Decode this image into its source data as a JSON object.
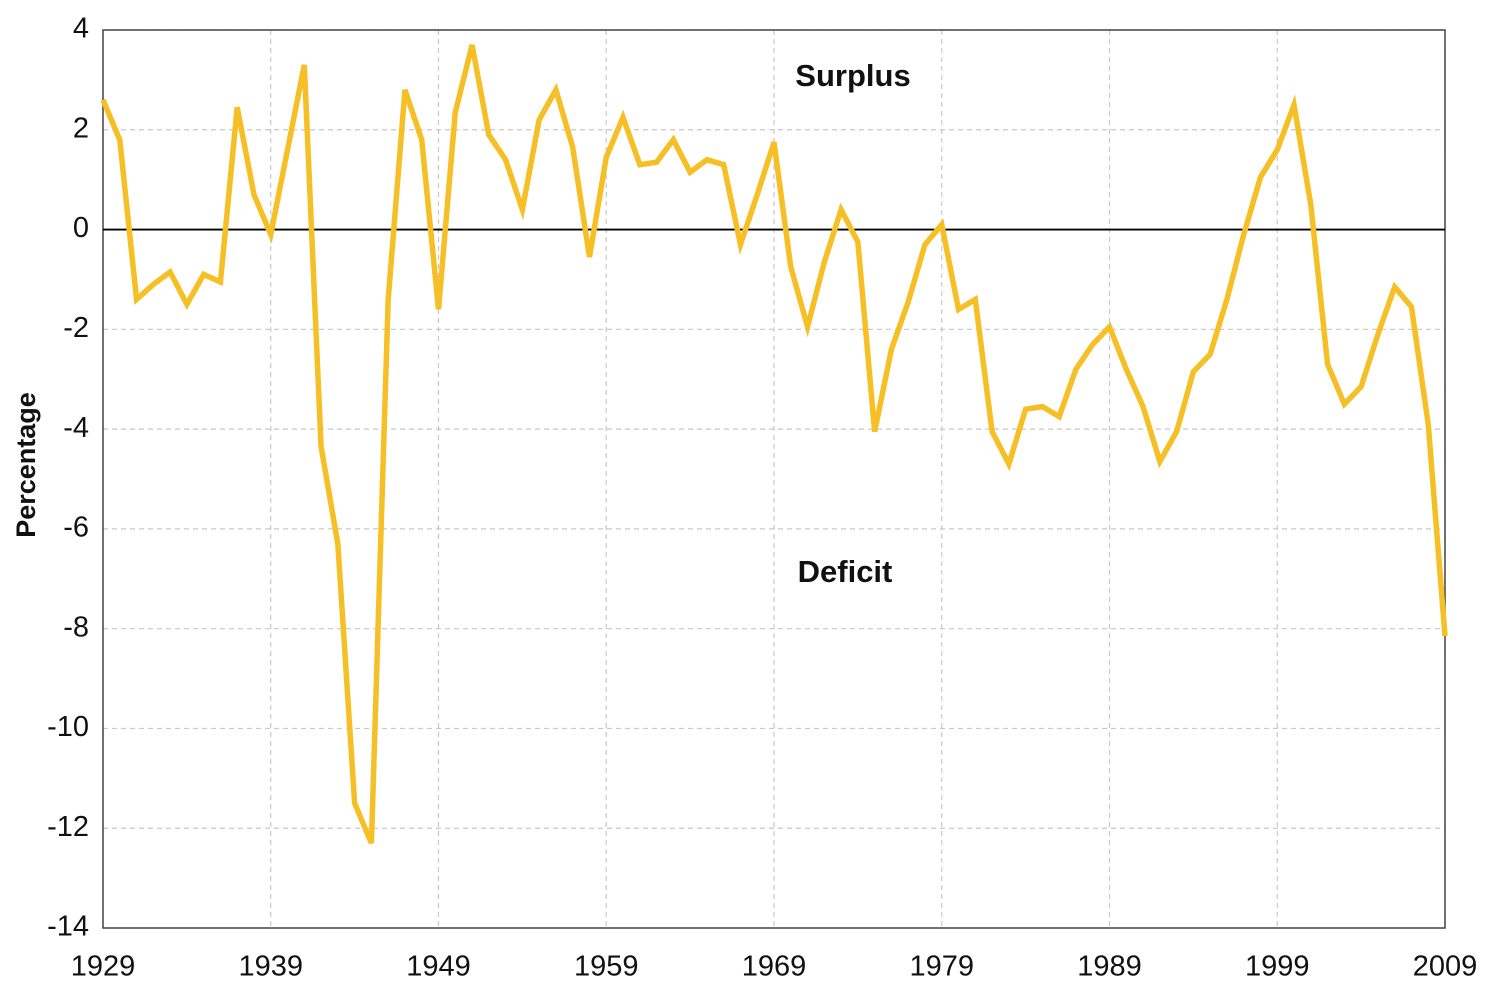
{
  "chart_data": {
    "type": "line",
    "y_label": "Percentage",
    "annotations": [
      "Surplus",
      "Deficit"
    ],
    "x": [
      1929,
      1930,
      1931,
      1932,
      1933,
      1934,
      1935,
      1936,
      1937,
      1938,
      1939,
      1940,
      1941,
      1942,
      1943,
      1944,
      1945,
      1946,
      1947,
      1948,
      1949,
      1950,
      1951,
      1952,
      1953,
      1954,
      1955,
      1956,
      1957,
      1958,
      1959,
      1960,
      1961,
      1962,
      1963,
      1964,
      1965,
      1966,
      1967,
      1968,
      1969,
      1970,
      1971,
      1972,
      1973,
      1974,
      1975,
      1976,
      1977,
      1978,
      1979,
      1980,
      1981,
      1982,
      1983,
      1984,
      1985,
      1986,
      1987,
      1988,
      1989,
      1990,
      1991,
      1992,
      1993,
      1994,
      1995,
      1996,
      1997,
      1998,
      1999,
      2000,
      2001,
      2002,
      2003,
      2004,
      2005,
      2006,
      2007,
      2008,
      2009
    ],
    "series": [
      {
        "color": "#f6bf26",
        "values": [
          2.6,
          1.8,
          -1.4,
          -1.1,
          -0.85,
          -1.5,
          -0.9,
          -1.05,
          2.45,
          0.7,
          -0.1,
          1.6,
          3.3,
          -4.35,
          -6.3,
          -11.5,
          -12.3,
          -1.4,
          2.8,
          1.8,
          -1.6,
          2.35,
          3.7,
          1.9,
          1.4,
          0.4,
          2.2,
          2.8,
          1.65,
          -0.55,
          1.45,
          2.25,
          1.3,
          1.35,
          1.8,
          1.15,
          1.4,
          1.3,
          -0.3,
          0.7,
          1.75,
          -0.75,
          -1.95,
          -0.65,
          0.4,
          -0.25,
          -4.05,
          -2.4,
          -1.45,
          -0.3,
          0.1,
          -1.6,
          -1.4,
          -4.05,
          -4.7,
          -3.6,
          -3.55,
          -3.75,
          -2.8,
          -2.3,
          -1.95,
          -2.8,
          -3.55,
          -4.65,
          -4.05,
          -2.85,
          -2.5,
          -1.4,
          -0.1,
          1.05,
          1.6,
          2.5,
          0.5,
          -2.7,
          -3.5,
          -3.15,
          -2.1,
          -1.15,
          -1.55,
          -3.9,
          -8.15
        ]
      }
    ],
    "xlim": [
      1929,
      2009
    ],
    "xticks": [
      1929,
      1939,
      1949,
      1959,
      1969,
      1979,
      1989,
      1999,
      2009
    ],
    "ylim": [
      -14,
      4
    ],
    "yticks": [
      -14,
      -12,
      -10,
      -8,
      -6,
      -4,
      -2,
      0,
      2,
      4
    ],
    "grid": true,
    "zero_line": true
  }
}
